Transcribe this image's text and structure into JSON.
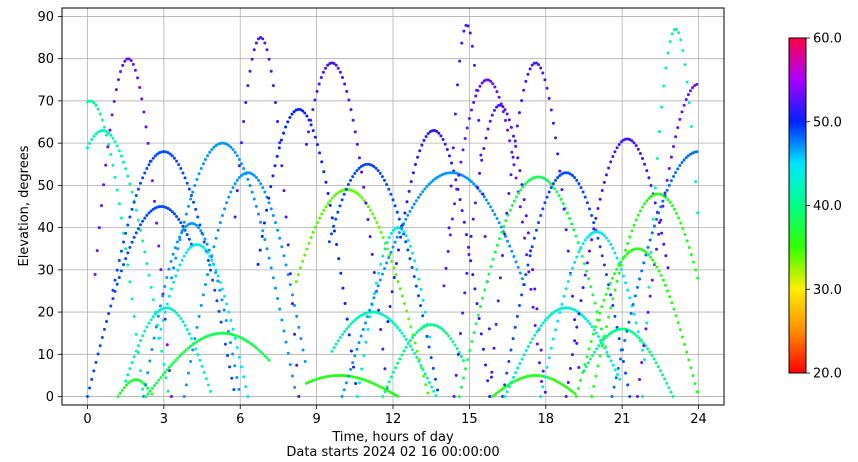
{
  "chart_data": {
    "type": "scatter",
    "xlabel": "Time, hours of day",
    "xlabel_line2": "Data starts 2024 02 16 00:00:00",
    "ylabel": "Elevation, degrees",
    "xlim": [
      -1,
      25
    ],
    "ylim": [
      -2,
      92
    ],
    "x_ticks": [
      0,
      3,
      6,
      9,
      12,
      15,
      18,
      21,
      24
    ],
    "y_ticks": [
      0,
      10,
      20,
      30,
      40,
      50,
      60,
      70,
      80,
      90
    ],
    "grid": true,
    "colorbar": {
      "range": [
        20,
        60
      ],
      "ticks": [
        "20.0",
        "30.0",
        "40.0",
        "50.0",
        "60.0"
      ],
      "colormap": "gist_rainbow"
    },
    "series": [
      {
        "t_start": 0.0,
        "t_end": 2.2,
        "peak_t": 0.1,
        "peak": 70,
        "color_value": 41
      },
      {
        "t_start": 0.0,
        "t_end": 3.2,
        "peak_t": 0.6,
        "peak": 63,
        "color_value": 42
      },
      {
        "t_start": 0.0,
        "t_end": 4.1,
        "peak_t": 2.9,
        "peak": 45,
        "color_value": 49
      },
      {
        "t_start": 0.3,
        "t_end": 3.3,
        "peak_t": 1.6,
        "peak": 80,
        "color_value": 53
      },
      {
        "t_start": 1.2,
        "t_end": 2.6,
        "peak_t": 1.9,
        "peak": 4,
        "color_value": 37
      },
      {
        "t_start": 1.0,
        "t_end": 5.8,
        "peak_t": 3.0,
        "peak": 58,
        "color_value": 49
      },
      {
        "t_start": 1.5,
        "t_end": 4.9,
        "peak_t": 3.1,
        "peak": 21,
        "color_value": 43
      },
      {
        "t_start": 2.2,
        "t_end": 6.0,
        "peak_t": 4.1,
        "peak": 41,
        "color_value": 47
      },
      {
        "t_start": 2.3,
        "t_end": 7.2,
        "peak_t": 5.3,
        "peak": 15,
        "color_value": 38
      },
      {
        "t_start": 3.3,
        "t_end": 8.2,
        "peak_t": 5.3,
        "peak": 60,
        "color_value": 47
      },
      {
        "t_start": 2.8,
        "t_end": 6.3,
        "peak_t": 4.3,
        "peak": 36,
        "color_value": 45
      },
      {
        "t_start": 3.8,
        "t_end": 8.6,
        "peak_t": 6.3,
        "peak": 53,
        "color_value": 47
      },
      {
        "t_start": 5.8,
        "t_end": 8.3,
        "peak_t": 6.8,
        "peak": 85,
        "color_value": 52
      },
      {
        "t_start": 6.7,
        "t_end": 10.6,
        "peak_t": 8.3,
        "peak": 68,
        "color_value": 50
      },
      {
        "t_start": 8.2,
        "t_end": 13.4,
        "peak_t": 10.2,
        "peak": 49,
        "color_value": 34
      },
      {
        "t_start": 8.6,
        "t_end": 11.8,
        "peak_t": 9.6,
        "peak": 79,
        "color_value": 52
      },
      {
        "t_start": 8.6,
        "t_end": 12.2,
        "peak_t": 9.9,
        "peak": 5,
        "color_value": 36
      },
      {
        "t_start": 9.5,
        "t_end": 13.8,
        "peak_t": 11.0,
        "peak": 55,
        "color_value": 49
      },
      {
        "t_start": 9.6,
        "t_end": 13.7,
        "peak_t": 11.2,
        "peak": 20,
        "color_value": 42
      },
      {
        "t_start": 10.6,
        "t_end": 13.5,
        "peak_t": 12.2,
        "peak": 40,
        "color_value": 44
      },
      {
        "t_start": 11.8,
        "t_end": 15.8,
        "peak_t": 13.6,
        "peak": 63,
        "color_value": 51
      },
      {
        "t_start": 11.6,
        "t_end": 14.8,
        "peak_t": 13.5,
        "peak": 17,
        "color_value": 40
      },
      {
        "t_start": 10.0,
        "t_end": 17.2,
        "peak_t": 14.3,
        "peak": 53,
        "color_value": 47
      },
      {
        "t_start": 14.2,
        "t_end": 15.9,
        "peak_t": 14.9,
        "peak": 88,
        "color_value": 52
      },
      {
        "t_start": 14.0,
        "t_end": 17.9,
        "peak_t": 15.7,
        "peak": 75,
        "color_value": 53
      },
      {
        "t_start": 14.4,
        "t_end": 18.0,
        "peak_t": 16.2,
        "peak": 69,
        "color_value": 52
      },
      {
        "t_start": 14.6,
        "t_end": 20.5,
        "peak_t": 17.7,
        "peak": 52,
        "color_value": 38
      },
      {
        "t_start": 15.8,
        "t_end": 19.3,
        "peak_t": 17.6,
        "peak": 79,
        "color_value": 52
      },
      {
        "t_start": 15.9,
        "t_end": 19.2,
        "peak_t": 17.6,
        "peak": 5,
        "color_value": 36
      },
      {
        "t_start": 16.3,
        "t_end": 21.3,
        "peak_t": 18.8,
        "peak": 53,
        "color_value": 49
      },
      {
        "t_start": 16.4,
        "t_end": 20.9,
        "peak_t": 18.8,
        "peak": 21,
        "color_value": 43
      },
      {
        "t_start": 17.8,
        "t_end": 21.9,
        "peak_t": 20.0,
        "peak": 39,
        "color_value": 45
      },
      {
        "t_start": 19.5,
        "t_end": 23.0,
        "peak_t": 21.0,
        "peak": 16,
        "color_value": 40
      },
      {
        "t_start": 18.8,
        "t_end": 22.8,
        "peak_t": 21.2,
        "peak": 61,
        "color_value": 52
      },
      {
        "t_start": 19.8,
        "t_end": 24.0,
        "peak_t": 22.4,
        "peak": 48,
        "color_value": 36
      },
      {
        "t_start": 21.8,
        "t_end": 24.0,
        "peak_t": 23.1,
        "peak": 87,
        "color_value": 42
      },
      {
        "t_start": 21.6,
        "t_end": 24.0,
        "peak_t": 24.0,
        "peak": 74,
        "color_value": 53
      },
      {
        "t_start": 20.6,
        "t_end": 24.0,
        "peak_t": 24.0,
        "peak": 58,
        "color_value": 48
      },
      {
        "t_start": 19.2,
        "t_end": 24.0,
        "peak_t": 21.6,
        "peak": 35,
        "color_value": 36
      }
    ]
  }
}
